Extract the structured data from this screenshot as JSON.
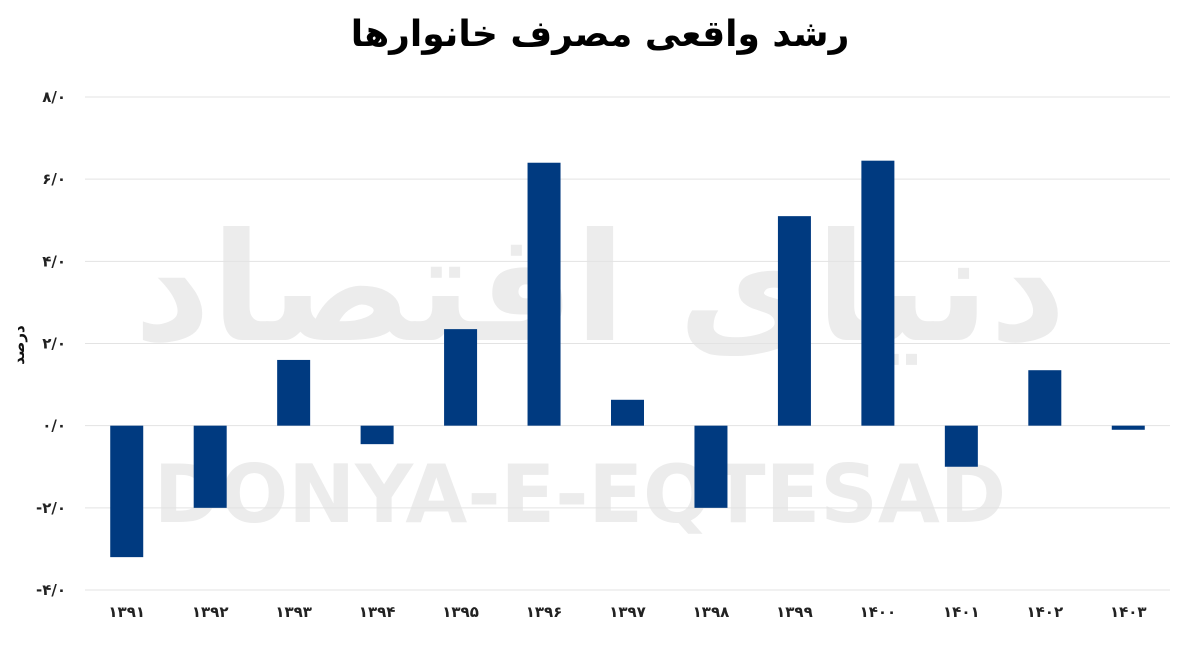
{
  "chart_data": {
    "type": "bar",
    "title": "رشد واقعی مصرف خانوارها",
    "xlabel": "",
    "ylabel": "درصد",
    "ylim": [
      -4,
      8
    ],
    "yticks": [
      -4,
      -2,
      0,
      2,
      4,
      6,
      8
    ],
    "ytick_labels": [
      "-۴/۰",
      "-۲/۰",
      "۰/۰",
      "۲/۰",
      "۴/۰",
      "۶/۰",
      "۸/۰"
    ],
    "categories": [
      "۱۳۹۱",
      "۱۳۹۲",
      "۱۳۹۳",
      "۱۳۹۴",
      "۱۳۹۵",
      "۱۳۹۶",
      "۱۳۹۷",
      "۱۳۹۸",
      "۱۳۹۹",
      "۱۴۰۰",
      "۱۴۰۱",
      "۱۴۰۲",
      "۱۴۰۳"
    ],
    "values": [
      -3.2,
      -2.0,
      1.6,
      -0.45,
      2.35,
      6.4,
      0.63,
      -2.0,
      5.1,
      6.45,
      -1.0,
      1.35,
      -0.1
    ],
    "grid": true,
    "legend": "none",
    "bar_color": "#003a80",
    "grid_color": "#e3e3e3"
  },
  "watermark": {
    "logo_text": "دنیای اقتصاد",
    "latin_text": "DONYA-E-EQTESAD"
  }
}
